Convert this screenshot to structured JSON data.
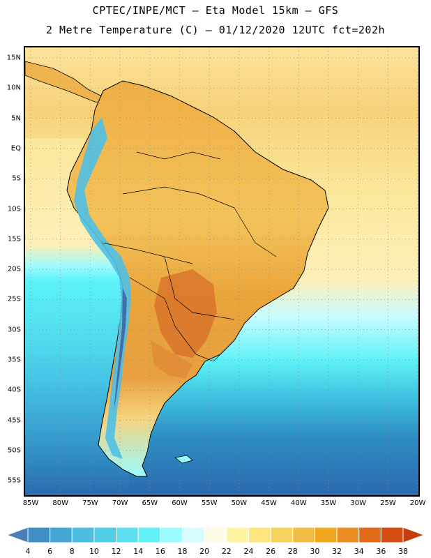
{
  "header": {
    "line1": "CPTEC/INPE/MCT –  Eta Model 15km – GFS",
    "line2": "2 Metre Temperature (C) – 01/12/2020 12UTC fct=202h"
  },
  "map": {
    "lat_labels": [
      "15N",
      "10N",
      "5N",
      "EQ",
      "5S",
      "10S",
      "15S",
      "20S",
      "25S",
      "30S",
      "35S",
      "40S",
      "45S",
      "50S",
      "55S"
    ],
    "lon_labels": [
      "85W",
      "80W",
      "75W",
      "70W",
      "65W",
      "60W",
      "55W",
      "50W",
      "45W",
      "40W",
      "35W",
      "30W",
      "25W",
      "20W"
    ],
    "grid": true,
    "ocean_colors": {
      "warm_north": "#fde39a",
      "tropical": "#f5c862",
      "subtropical": "#fcefb8",
      "mid": "#5df2f7",
      "cool": "#3fc3e0",
      "cold": "#2d8ec4",
      "colder": "#2c6aad"
    },
    "land_colors": {
      "hot": "#e6a237",
      "very_hot": "#d9742a",
      "andes_cold": "#4fc0e6",
      "andes_very_cold": "#3d6fae"
    }
  },
  "colorbar": {
    "ticks": [
      "4",
      "6",
      "8",
      "10",
      "12",
      "14",
      "16",
      "18",
      "20",
      "22",
      "24",
      "26",
      "28",
      "30",
      "32",
      "34",
      "36",
      "38"
    ],
    "colors": [
      "#4a7fb8",
      "#3d8fc6",
      "#44a6d3",
      "#4dbcdf",
      "#52cde6",
      "#5ddff0",
      "#62f0f7",
      "#9bfbff",
      "#d8fbff",
      "#fdfbe8",
      "#fdf3a2",
      "#fde57e",
      "#f6d25e",
      "#efbd46",
      "#f0a81f",
      "#ea8d22",
      "#e06a17",
      "#d54d10",
      "#c33e0c"
    ]
  }
}
